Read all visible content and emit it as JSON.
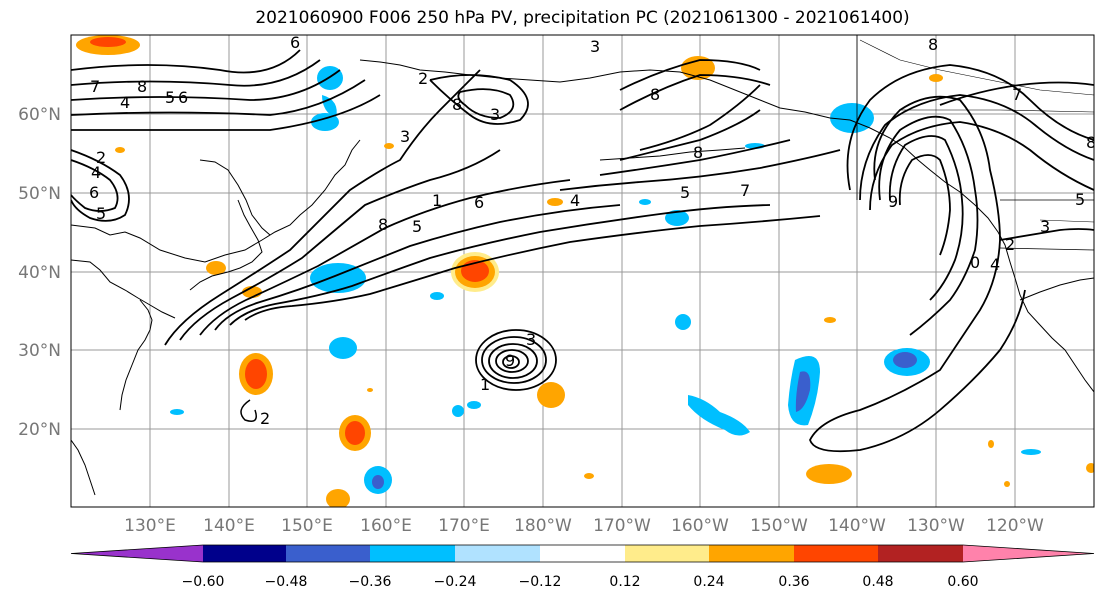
{
  "title": "2021060900 F006 250 hPa PV, precipitation PC (2021061300 - 2021061400)",
  "map": {
    "lon_labels": [
      "130°E",
      "140°E",
      "150°E",
      "160°E",
      "170°E",
      "180°W",
      "170°W",
      "160°W",
      "150°W",
      "140°W",
      "130°W",
      "120°W"
    ],
    "lat_labels": [
      "60°N",
      "50°N",
      "40°N",
      "30°N",
      "20°N"
    ],
    "contour_labels": [
      "7",
      "8",
      "4",
      "5",
      "6",
      "2",
      "4",
      "6",
      "5",
      "3",
      "2",
      "3",
      "8",
      "5",
      "8",
      "7",
      "6",
      "4",
      "8",
      "5",
      "9",
      "3",
      "2",
      "1",
      "3",
      "8",
      "7",
      "6",
      "5",
      "4",
      "3",
      "2",
      "1",
      "8",
      "9",
      "0",
      "8"
    ]
  },
  "colorbar": {
    "colors": [
      "#9932CC",
      "#00008B",
      "#3A5FCD",
      "#00BFFF",
      "#B0E2FF",
      "#FFFFFF",
      "#FFEC8B",
      "#FFA500",
      "#FF4500",
      "#B22222",
      "#FF82AB"
    ],
    "tick_labels": [
      "−0.60",
      "−0.48",
      "−0.36",
      "−0.24",
      "−0.12",
      "0.12",
      "0.24",
      "0.36",
      "0.48",
      "0.60"
    ]
  }
}
